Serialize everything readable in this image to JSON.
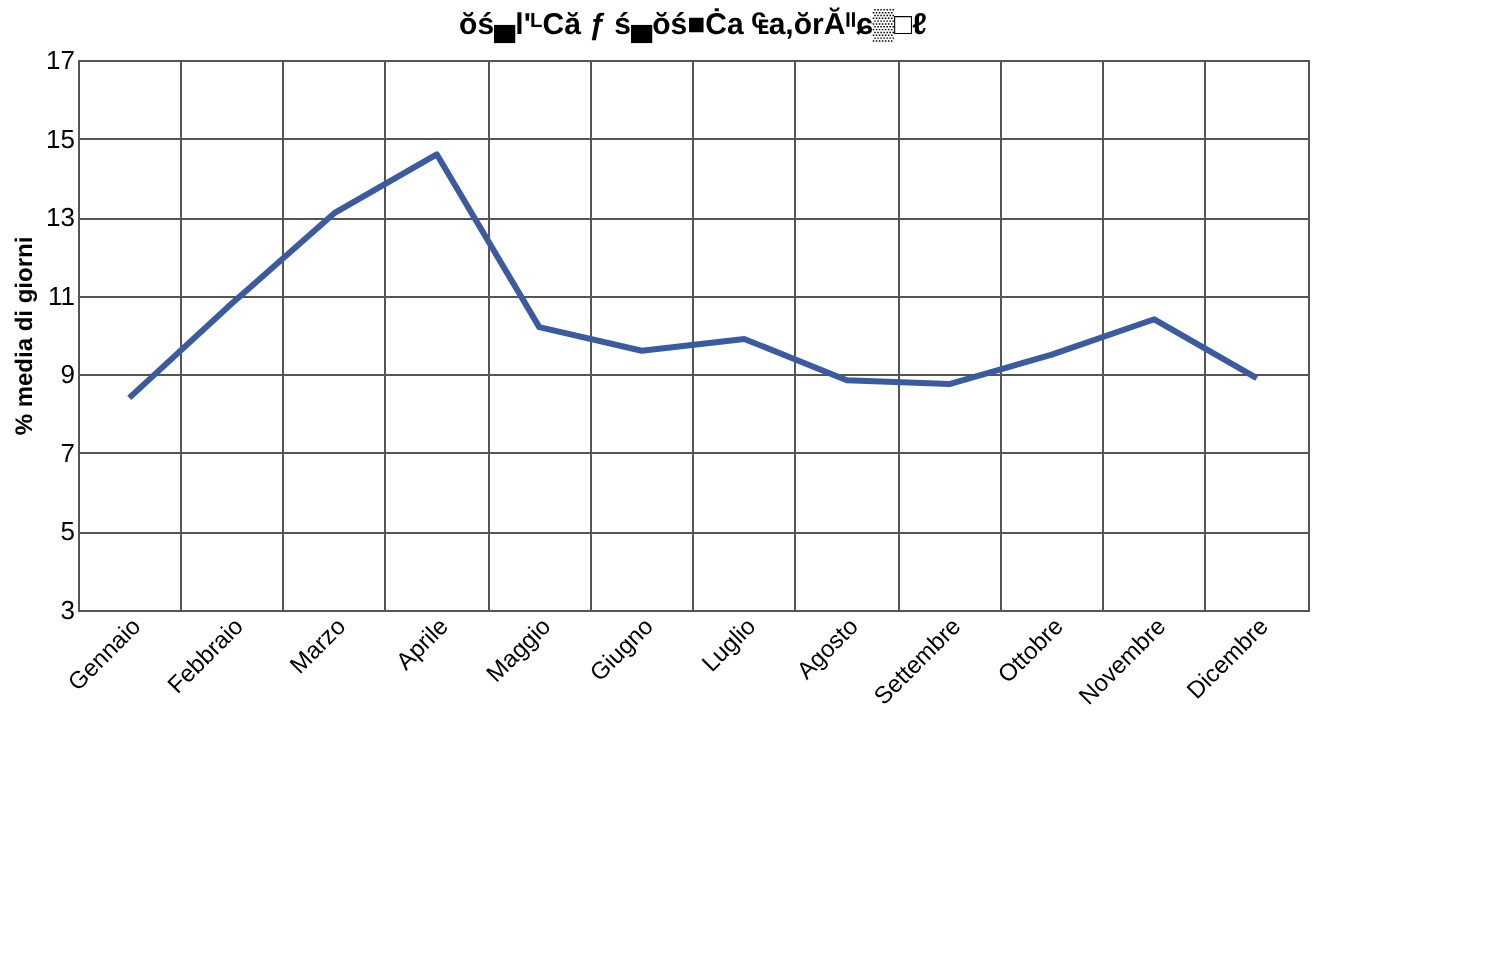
{
  "chart_data": {
    "type": "line",
    "title": "ŏś▄l'ᴸCă ƒ ś▄ŏś■Ċa ₠a,ŏrĂᴵᴵɕ▒□ℓ",
    "ylabel": "% media di giorni",
    "categories": [
      "Gennaio",
      "Febbraio",
      "Marzo",
      "Aprile",
      "Maggio",
      "Giugno",
      "Luglio",
      "Agosto",
      "Settembre",
      "Ottobre",
      "Novembre",
      "Dicembre"
    ],
    "series": [
      {
        "color": "#3a5ba0",
        "values": [
          8.4,
          10.8,
          13.1,
          14.6,
          10.2,
          9.6,
          9.9,
          8.85,
          8.75,
          9.5,
          10.4,
          8.9
        ]
      }
    ],
    "ylim": [
      3,
      17
    ],
    "yticks": [
      3,
      5,
      7,
      9,
      11,
      13,
      15,
      17
    ],
    "grid": true,
    "legend": false,
    "marker": "none",
    "line_style": "solid"
  }
}
